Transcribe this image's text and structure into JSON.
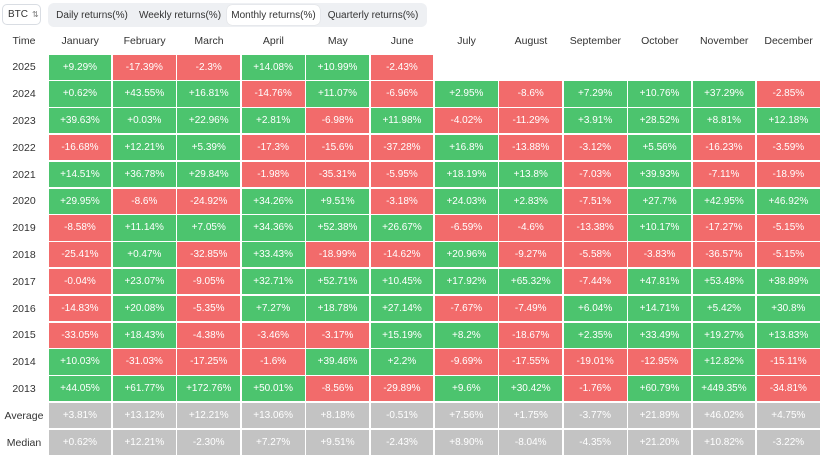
{
  "asset": {
    "label": "BTC",
    "chevron_icon": "up-down-chevron-icon"
  },
  "tabs": [
    {
      "label": "Daily returns(%)",
      "active": false
    },
    {
      "label": "Weekly returns(%)",
      "active": false
    },
    {
      "label": "Monthly returns(%)",
      "active": true
    },
    {
      "label": "Quarterly returns(%)",
      "active": false
    }
  ],
  "colors": {
    "positive": "#4cc46e",
    "negative": "#f26b6b",
    "stat": "#c3c3c3"
  },
  "table": {
    "time_header": "Time",
    "months": [
      "January",
      "February",
      "March",
      "April",
      "May",
      "June",
      "July",
      "August",
      "September",
      "October",
      "November",
      "December"
    ],
    "rows": [
      {
        "year": "2025",
        "values": [
          "+9.29%",
          "-17.39%",
          "-2.3%",
          "+14.08%",
          "+10.99%",
          "-2.43%",
          "",
          "",
          "",
          "",
          "",
          ""
        ]
      },
      {
        "year": "2024",
        "values": [
          "+0.62%",
          "+43.55%",
          "+16.81%",
          "-14.76%",
          "+11.07%",
          "-6.96%",
          "+2.95%",
          "-8.6%",
          "+7.29%",
          "+10.76%",
          "+37.29%",
          "-2.85%"
        ]
      },
      {
        "year": "2023",
        "values": [
          "+39.63%",
          "+0.03%",
          "+22.96%",
          "+2.81%",
          "-6.98%",
          "+11.98%",
          "-4.02%",
          "-11.29%",
          "+3.91%",
          "+28.52%",
          "+8.81%",
          "+12.18%"
        ]
      },
      {
        "year": "2022",
        "values": [
          "-16.68%",
          "+12.21%",
          "+5.39%",
          "-17.3%",
          "-15.6%",
          "-37.28%",
          "+16.8%",
          "-13.88%",
          "-3.12%",
          "+5.56%",
          "-16.23%",
          "-3.59%"
        ]
      },
      {
        "year": "2021",
        "values": [
          "+14.51%",
          "+36.78%",
          "+29.84%",
          "-1.98%",
          "-35.31%",
          "-5.95%",
          "+18.19%",
          "+13.8%",
          "-7.03%",
          "+39.93%",
          "-7.11%",
          "-18.9%"
        ]
      },
      {
        "year": "2020",
        "values": [
          "+29.95%",
          "-8.6%",
          "-24.92%",
          "+34.26%",
          "+9.51%",
          "-3.18%",
          "+24.03%",
          "+2.83%",
          "-7.51%",
          "+27.7%",
          "+42.95%",
          "+46.92%"
        ]
      },
      {
        "year": "2019",
        "values": [
          "-8.58%",
          "+11.14%",
          "+7.05%",
          "+34.36%",
          "+52.38%",
          "+26.67%",
          "-6.59%",
          "-4.6%",
          "-13.38%",
          "+10.17%",
          "-17.27%",
          "-5.15%"
        ]
      },
      {
        "year": "2018",
        "values": [
          "-25.41%",
          "+0.47%",
          "-32.85%",
          "+33.43%",
          "-18.99%",
          "-14.62%",
          "+20.96%",
          "-9.27%",
          "-5.58%",
          "-3.83%",
          "-36.57%",
          "-5.15%"
        ]
      },
      {
        "year": "2017",
        "values": [
          "-0.04%",
          "+23.07%",
          "-9.05%",
          "+32.71%",
          "+52.71%",
          "+10.45%",
          "+17.92%",
          "+65.32%",
          "-7.44%",
          "+47.81%",
          "+53.48%",
          "+38.89%"
        ]
      },
      {
        "year": "2016",
        "values": [
          "-14.83%",
          "+20.08%",
          "-5.35%",
          "+7.27%",
          "+18.78%",
          "+27.14%",
          "-7.67%",
          "-7.49%",
          "+6.04%",
          "+14.71%",
          "+5.42%",
          "+30.8%"
        ]
      },
      {
        "year": "2015",
        "values": [
          "-33.05%",
          "+18.43%",
          "-4.38%",
          "-3.46%",
          "-3.17%",
          "+15.19%",
          "+8.2%",
          "-18.67%",
          "+2.35%",
          "+33.49%",
          "+19.27%",
          "+13.83%"
        ]
      },
      {
        "year": "2014",
        "values": [
          "+10.03%",
          "-31.03%",
          "-17.25%",
          "-1.6%",
          "+39.46%",
          "+2.2%",
          "-9.69%",
          "-17.55%",
          "-19.01%",
          "-12.95%",
          "+12.82%",
          "-15.11%"
        ]
      },
      {
        "year": "2013",
        "values": [
          "+44.05%",
          "+61.77%",
          "+172.76%",
          "+50.01%",
          "-8.56%",
          "-29.89%",
          "+9.6%",
          "+30.42%",
          "-1.76%",
          "+60.79%",
          "+449.35%",
          "-34.81%"
        ]
      }
    ],
    "stats": [
      {
        "label": "Average",
        "values": [
          "+3.81%",
          "+13.12%",
          "+12.21%",
          "+13.06%",
          "+8.18%",
          "-0.51%",
          "+7.56%",
          "+1.75%",
          "-3.77%",
          "+21.89%",
          "+46.02%",
          "+4.75%"
        ]
      },
      {
        "label": "Median",
        "values": [
          "+0.62%",
          "+12.21%",
          "-2.30%",
          "+7.27%",
          "+9.51%",
          "-2.43%",
          "+8.90%",
          "-8.04%",
          "-4.35%",
          "+21.20%",
          "+10.82%",
          "-3.22%"
        ]
      }
    ]
  }
}
